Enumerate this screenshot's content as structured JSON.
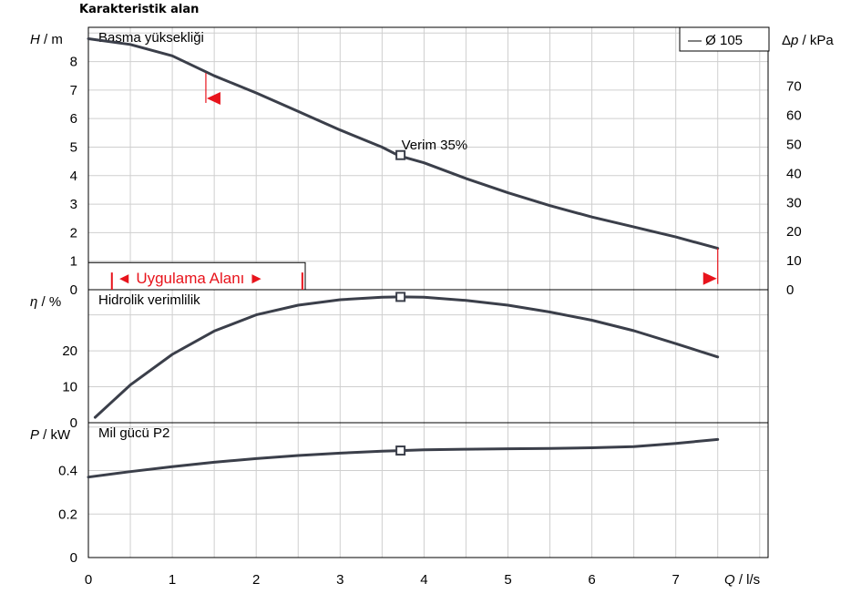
{
  "chart_data": {
    "title": "Karakteristik alan",
    "legend": {
      "label": "— Ø 105",
      "placement": "top-right"
    },
    "x": {
      "label_var": "Q",
      "label_unit": " / l/s",
      "min": 0,
      "max": 8.1,
      "major_ticks": [
        0,
        1,
        2,
        3,
        4,
        5,
        6,
        7
      ],
      "major_labels": [
        "0",
        "1",
        "2",
        "3",
        "4",
        "5",
        "6",
        "7"
      ]
    },
    "panels": [
      {
        "id": "head",
        "type": "line",
        "name": "Basma yüksekliği",
        "ylabel_var": "H",
        "ylabel_unit": " / m",
        "ylim": [
          0,
          9.2
        ],
        "y_ticks": [
          0,
          1,
          2,
          3,
          4,
          5,
          6,
          7,
          8
        ],
        "y2label_var": "Δp",
        "y2label_unit": " / kPa",
        "y2_ticks": [
          0,
          10,
          20,
          30,
          40,
          50,
          60,
          70
        ],
        "x": [
          0,
          0.5,
          1,
          1.5,
          2,
          2.5,
          3,
          3.5,
          3.7,
          4,
          4.5,
          5,
          5.5,
          6,
          6.5,
          7,
          7.5
        ],
        "y": [
          8.8,
          8.6,
          8.2,
          7.5,
          6.9,
          6.25,
          5.6,
          5.0,
          4.7,
          4.45,
          3.9,
          3.4,
          2.95,
          2.55,
          2.2,
          1.85,
          1.45
        ],
        "duty_point": {
          "x": 3.72,
          "y": 4.72,
          "label": "Verim  35%"
        },
        "range_marks": [
          {
            "x": 1.4,
            "y_top": 7.6,
            "y_bottom": 6.55
          },
          {
            "x": 7.5,
            "y_top": 1.45,
            "y_bottom": 0.2
          }
        ],
        "application_area": {
          "label": "Uygulama Alanı",
          "x_start": 0.28,
          "x_end": 2.55
        }
      },
      {
        "id": "efficiency",
        "type": "line",
        "name": "Hidrolik verimlilik",
        "ylabel_var": "η",
        "ylabel_unit": " / %",
        "ylim": [
          0,
          37
        ],
        "y_ticks": [
          0,
          10,
          20
        ],
        "x": [
          0.08,
          0.5,
          1,
          1.5,
          2,
          2.5,
          3,
          3.5,
          3.72,
          4,
          4.5,
          5,
          5.5,
          6,
          6.5,
          7,
          7.5
        ],
        "y": [
          1.5,
          10.5,
          19,
          25.5,
          30,
          32.7,
          34.2,
          34.9,
          35,
          34.9,
          34,
          32.7,
          30.8,
          28.5,
          25.6,
          22,
          18.3
        ],
        "duty_point": {
          "x": 3.72,
          "y": 35
        }
      },
      {
        "id": "power",
        "type": "line",
        "name": "Mil gücü P2",
        "ylabel_var": "P",
        "ylabel_unit": "  / kW",
        "ylim": [
          0,
          0.62
        ],
        "y_ticks": [
          0,
          0.2,
          0.4
        ],
        "y_tick_labels": [
          "0",
          "0.2",
          "0.4"
        ],
        "x": [
          0,
          0.5,
          1,
          1.5,
          2,
          2.5,
          3,
          3.5,
          3.72,
          4,
          4.5,
          5,
          5.5,
          6,
          6.5,
          7,
          7.5
        ],
        "y": [
          0.37,
          0.395,
          0.418,
          0.438,
          0.455,
          0.469,
          0.48,
          0.489,
          0.492,
          0.495,
          0.498,
          0.5,
          0.502,
          0.505,
          0.51,
          0.525,
          0.543
        ],
        "duty_point": {
          "x": 3.72,
          "y": 0.492
        }
      }
    ]
  }
}
